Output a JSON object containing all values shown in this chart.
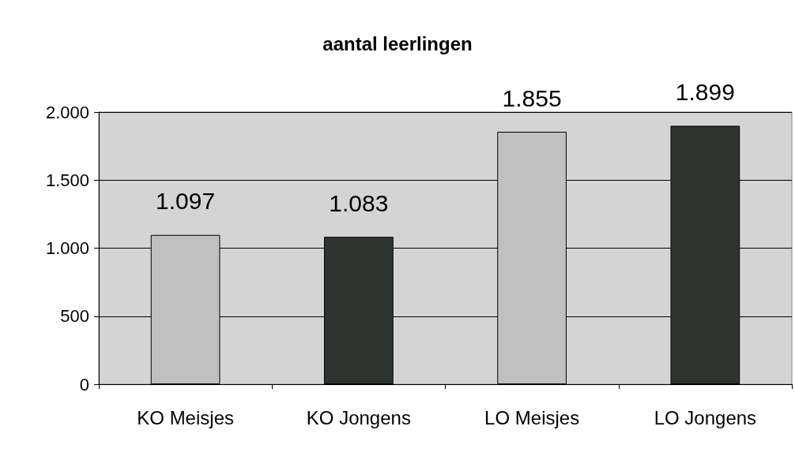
{
  "chart_data": {
    "type": "bar",
    "title": "aantal leerlingen",
    "categories": [
      "KO Meisjes",
      "KO Jongens",
      "LO Meisjes",
      "LO Jongens"
    ],
    "values": [
      1097,
      1083,
      1855,
      1899
    ],
    "colors": [
      "#c0c0c0",
      "#303430",
      "#c0c0c0",
      "#303430"
    ],
    "value_labels": [
      "1.097",
      "1.083",
      "1.855",
      "1.899"
    ],
    "ylim": [
      0,
      2000
    ],
    "yticks": [
      {
        "value": 0,
        "label": "0"
      },
      {
        "value": 500,
        "label": "500"
      },
      {
        "value": 1000,
        "label": "1.000"
      },
      {
        "value": 1500,
        "label": "1.500"
      },
      {
        "value": 2000,
        "label": "2.000"
      }
    ],
    "grid": "y"
  }
}
